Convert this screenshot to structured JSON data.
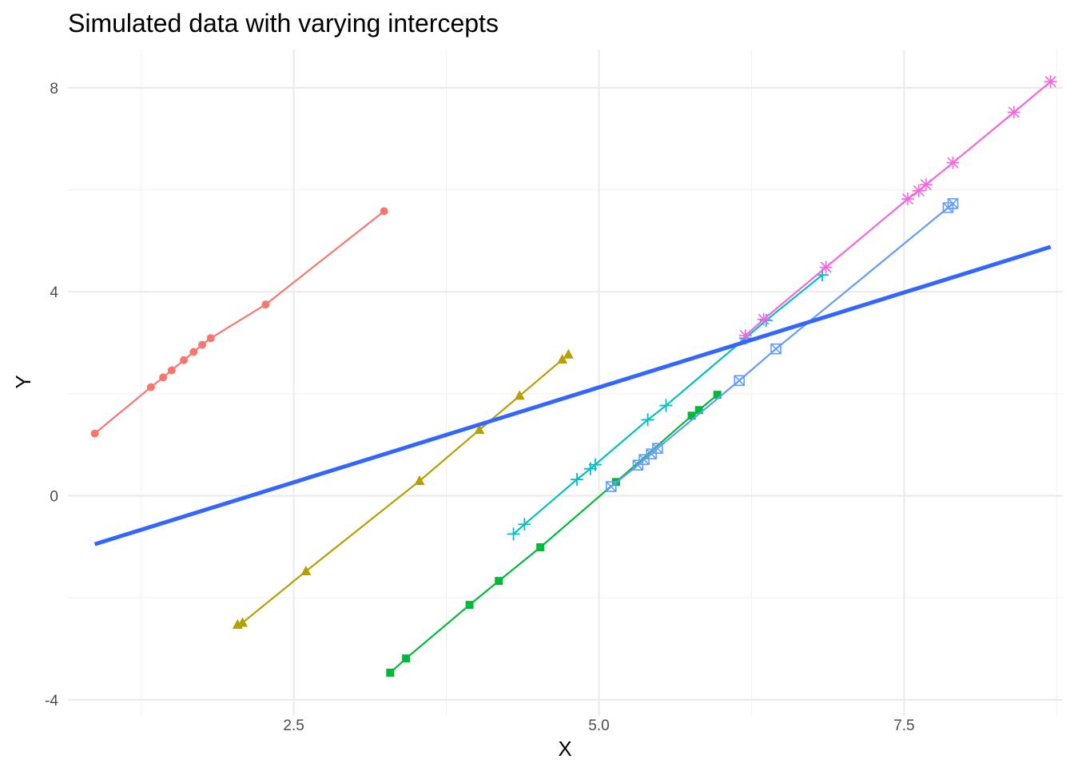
{
  "chart_data": {
    "type": "line",
    "title": "Simulated data with varying intercepts",
    "xlabel": "X",
    "ylabel": "Y",
    "xlim": [
      0.65,
      8.8
    ],
    "ylim": [
      -4.3,
      8.75
    ],
    "x_ticks": [
      2.5,
      5.0,
      7.5
    ],
    "x_tick_labels": [
      "2.5",
      "5.0",
      "7.5"
    ],
    "y_ticks": [
      -4,
      0,
      4,
      8
    ],
    "y_tick_labels": [
      "-4",
      "0",
      "4",
      "8"
    ],
    "grid": true,
    "legend": "none",
    "series": [
      {
        "color": "#F8766D",
        "marker": "circle",
        "points": [
          [
            0.87,
            1.22
          ],
          [
            1.33,
            2.13
          ],
          [
            1.43,
            2.32
          ],
          [
            1.5,
            2.46
          ],
          [
            1.6,
            2.66
          ],
          [
            1.68,
            2.82
          ],
          [
            1.75,
            2.96
          ],
          [
            1.82,
            3.09
          ],
          [
            2.27,
            3.75
          ],
          [
            3.24,
            5.58
          ]
        ]
      },
      {
        "color": "#B79F00",
        "marker": "triangle",
        "points": [
          [
            2.04,
            -2.53
          ],
          [
            2.08,
            -2.49
          ],
          [
            2.6,
            -1.48
          ],
          [
            3.53,
            0.29
          ],
          [
            4.02,
            1.29
          ],
          [
            4.35,
            1.96
          ],
          [
            4.7,
            2.67
          ],
          [
            4.75,
            2.77
          ]
        ]
      },
      {
        "color": "#00BA38",
        "marker": "square",
        "points": [
          [
            3.29,
            -3.47
          ],
          [
            3.42,
            -3.19
          ],
          [
            3.94,
            -2.14
          ],
          [
            4.18,
            -1.67
          ],
          [
            4.52,
            -1.01
          ],
          [
            5.14,
            0.27
          ],
          [
            5.76,
            1.57
          ],
          [
            5.82,
            1.68
          ],
          [
            5.97,
            1.98
          ]
        ]
      },
      {
        "color": "#00BFC4",
        "marker": "plus",
        "points": [
          [
            4.3,
            -0.75
          ],
          [
            4.39,
            -0.56
          ],
          [
            4.82,
            0.32
          ],
          [
            4.93,
            0.53
          ],
          [
            4.97,
            0.61
          ],
          [
            5.4,
            1.49
          ],
          [
            5.55,
            1.77
          ],
          [
            6.2,
            3.09
          ],
          [
            6.37,
            3.44
          ],
          [
            6.83,
            4.33
          ]
        ]
      },
      {
        "color": "#619CFF",
        "marker": "square-cross",
        "points": [
          [
            5.1,
            0.18
          ],
          [
            5.32,
            0.6
          ],
          [
            5.37,
            0.71
          ],
          [
            5.43,
            0.82
          ],
          [
            5.48,
            0.93
          ],
          [
            6.15,
            2.26
          ],
          [
            6.45,
            2.88
          ],
          [
            7.86,
            5.65
          ],
          [
            7.9,
            5.73
          ]
        ]
      },
      {
        "color": "#F564E3",
        "marker": "asterisk",
        "points": [
          [
            6.2,
            3.14
          ],
          [
            6.35,
            3.46
          ],
          [
            6.86,
            4.48
          ],
          [
            7.53,
            5.82
          ],
          [
            7.62,
            5.98
          ],
          [
            7.68,
            6.1
          ],
          [
            7.9,
            6.53
          ],
          [
            8.4,
            7.52
          ],
          [
            8.7,
            8.12
          ]
        ]
      }
    ],
    "fit_line": {
      "color": "#3366FF",
      "x": [
        0.87,
        8.7
      ],
      "y": [
        -0.95,
        4.88
      ]
    }
  }
}
